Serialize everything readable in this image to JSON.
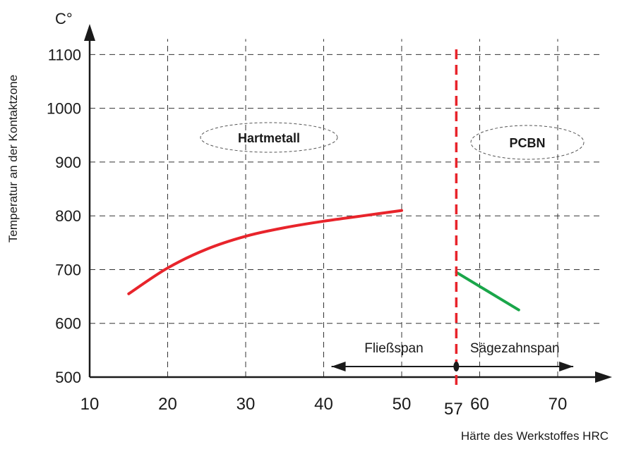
{
  "chart_data": {
    "type": "line",
    "title": "",
    "xlabel": "Härte des Werkstoffes HRC",
    "ylabel": "Temperatur an der Kontaktzone",
    "y_unit": "C°",
    "xlim": [
      10,
      70
    ],
    "ylim": [
      500,
      1100
    ],
    "x_ticks": [
      "10",
      "20",
      "30",
      "40",
      "50",
      "60",
      "70"
    ],
    "y_ticks": [
      "500",
      "600",
      "700",
      "800",
      "900",
      "1000",
      "1100"
    ],
    "grid": true,
    "series": [
      {
        "name": "Hartmetall",
        "color": "#e8242b",
        "x": [
          15,
          20,
          25,
          30,
          35,
          40,
          45,
          50
        ],
        "y": [
          655,
          703,
          738,
          762,
          778,
          790,
          800,
          810
        ]
      },
      {
        "name": "PCBN",
        "color": "#1aa64a",
        "x": [
          57,
          61,
          65
        ],
        "y": [
          695,
          660,
          625
        ]
      }
    ],
    "threshold": {
      "x": 57,
      "label": "57",
      "color": "#e8242b"
    },
    "ranges": [
      {
        "label": "Fließspan",
        "from": 41,
        "to": 57
      },
      {
        "label": "Sägezahnspan",
        "from": 57,
        "to": 72
      }
    ]
  }
}
